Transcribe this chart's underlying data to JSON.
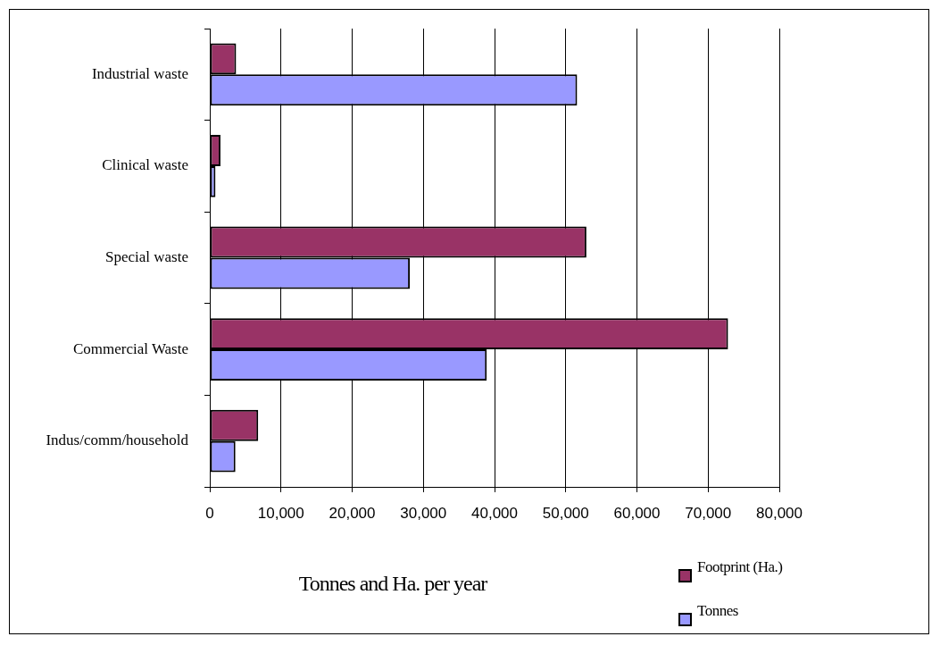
{
  "chart_data": {
    "type": "bar",
    "orientation": "horizontal",
    "xlabel": "Tonnes and Ha. per year",
    "categories": [
      "Industrial waste",
      "Clinical waste",
      "Special waste",
      "Commercial Waste",
      "Indus/comm/household"
    ],
    "series": [
      {
        "name": "Footprint (Ha.)",
        "color": "#993366",
        "values": [
          3700,
          1500,
          52900,
          72800,
          6800
        ]
      },
      {
        "name": "Tonnes",
        "color": "#9999ff",
        "values": [
          51600,
          800,
          28100,
          38900,
          3600
        ]
      }
    ],
    "xlim": [
      0,
      80000
    ],
    "xticks": [
      0,
      {
        "value": 10000,
        "label": "10,000"
      },
      {
        "value": 20000,
        "label": "20,000"
      },
      {
        "value": 30000,
        "label": "30,000"
      },
      {
        "value": 40000,
        "label": "40,000"
      },
      {
        "value": 50000,
        "label": "50,000"
      },
      {
        "value": 60000,
        "label": "60,000"
      },
      {
        "value": 70000,
        "label": "70,000"
      },
      {
        "value": 80000,
        "label": "80,000"
      }
    ],
    "grid": "x",
    "legend": "bottom right"
  }
}
